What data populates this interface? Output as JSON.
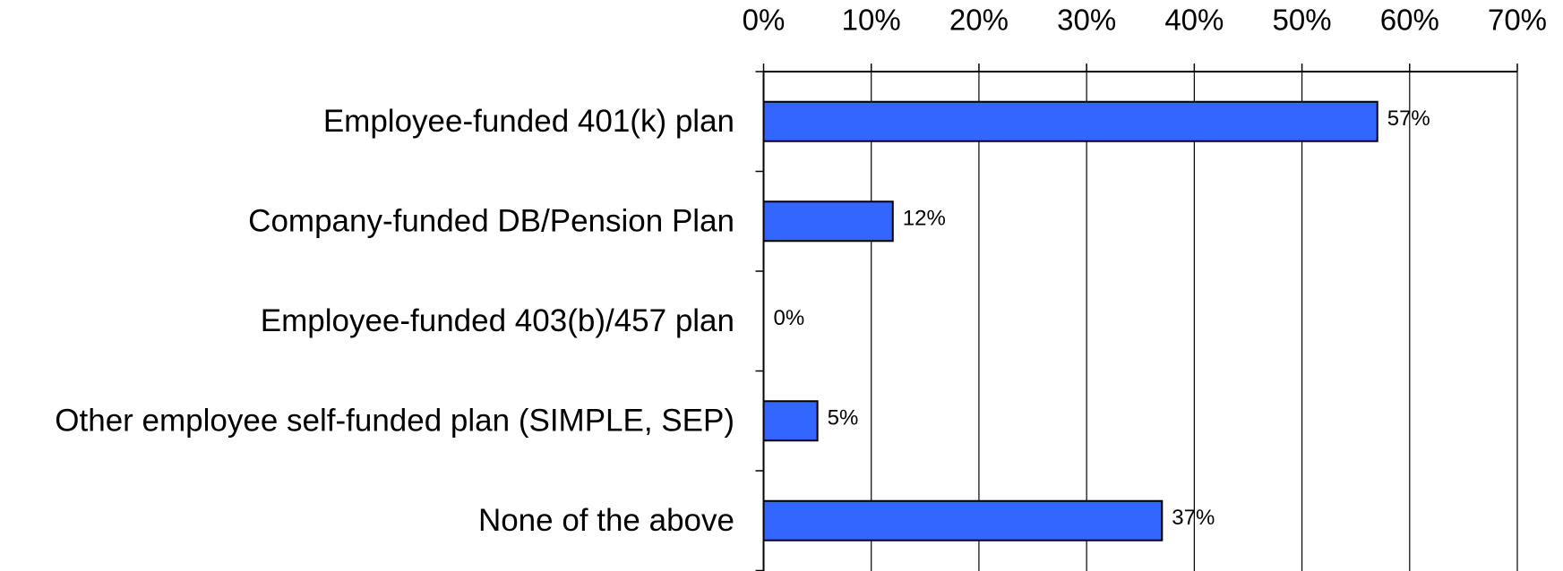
{
  "chart_data": {
    "type": "bar",
    "orientation": "horizontal",
    "categories": [
      "Employee-funded 401(k) plan",
      "Company-funded DB/Pension Plan",
      "Employee-funded 403(b)/457 plan",
      "Other employee self-funded plan (SIMPLE, SEP)",
      "None of the above"
    ],
    "values": [
      57,
      12,
      0,
      5,
      37
    ],
    "value_labels": [
      "57%",
      "12%",
      "0%",
      "5%",
      "37%"
    ],
    "color": "#3366ff",
    "xlim": [
      0,
      70
    ],
    "xticks": [
      {
        "value": 0,
        "label": "0%"
      },
      {
        "value": 10,
        "label": "10%"
      },
      {
        "value": 20,
        "label": "20%"
      },
      {
        "value": 30,
        "label": "30%"
      },
      {
        "value": 40,
        "label": "40%"
      },
      {
        "value": 50,
        "label": "50%"
      },
      {
        "value": 60,
        "label": "60%"
      },
      {
        "value": 70,
        "label": "70%"
      }
    ],
    "grid": true
  }
}
